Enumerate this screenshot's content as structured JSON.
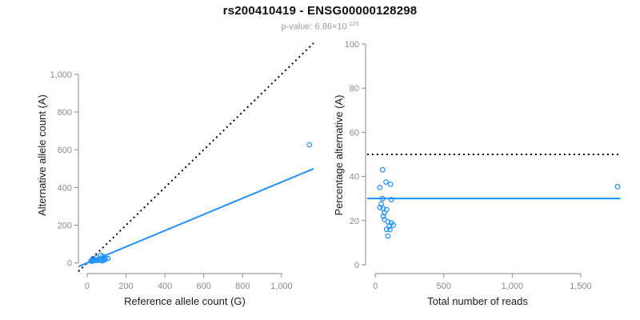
{
  "header": {
    "title": "rs200410419 - ENSG00000128298",
    "pvalue_label": "p-value: ",
    "pvalue_base": "6.86×10",
    "pvalue_exponent": "-125"
  },
  "colors": {
    "accent_blue": "#1E90FF",
    "line_black": "#000000",
    "axis_gray": "#8a8a8a",
    "tick_label_gray": "#8a8a8a",
    "axis_title_color": "#1a1a1a",
    "subtitle_gray": "#9a9a9a",
    "background": "#ffffff"
  },
  "chart_data": [
    {
      "id": "allele-count-scatter",
      "type": "scatter",
      "title": "",
      "xlabel": "Reference allele count (G)",
      "ylabel": "Alternative allele count (A)",
      "xlim": [
        0,
        1150
      ],
      "ylim": [
        0,
        1150
      ],
      "grid": false,
      "legend": "none",
      "xticks": [
        0,
        200,
        400,
        600,
        800,
        1000
      ],
      "xtick_labels": [
        "0",
        "200",
        "400",
        "600",
        "800",
        "1,000"
      ],
      "yticks": [
        0,
        200,
        400,
        600,
        800,
        1000
      ],
      "ytick_labels": [
        "0",
        "200",
        "400",
        "600",
        "800",
        "1,000"
      ],
      "points": [
        [
          30,
          23
        ],
        [
          49,
          29
        ],
        [
          70,
          41
        ],
        [
          21,
          12
        ],
        [
          36,
          16
        ],
        [
          82,
          35
        ],
        [
          31,
          12
        ],
        [
          24,
          9
        ],
        [
          42,
          15
        ],
        [
          62,
          21
        ],
        [
          50,
          16
        ],
        [
          45,
          13
        ],
        [
          52,
          14
        ],
        [
          74,
          18
        ],
        [
          95,
          22
        ],
        [
          84,
          18
        ],
        [
          107,
          24
        ],
        [
          69,
          13
        ],
        [
          90,
          17
        ],
        [
          80,
          12
        ],
        [
          1143,
          626
        ]
      ],
      "lines": [
        {
          "name": "identity-line",
          "kind": "abline",
          "slope": 1,
          "intercept": 0,
          "style": "dotted",
          "color": "#000000"
        },
        {
          "name": "fit-line",
          "kind": "abline",
          "slope": 0.4286,
          "intercept": 0,
          "style": "solid",
          "color": "#1E90FF"
        }
      ]
    },
    {
      "id": "percentage-alternative-scatter",
      "type": "scatter",
      "title": "",
      "xlabel": "Total number of reads",
      "ylabel": "Percentage alternative (A)",
      "xlim": [
        0,
        1780
      ],
      "ylim": [
        0,
        100
      ],
      "grid": false,
      "legend": "none",
      "xticks": [
        0,
        500,
        1000,
        1500
      ],
      "xtick_labels": [
        "0",
        "500",
        "1,000",
        "1,500"
      ],
      "yticks": [
        0,
        20,
        40,
        60,
        80,
        100
      ],
      "ytick_labels": [
        "0",
        "20",
        "40",
        "60",
        "80",
        "100"
      ],
      "points": [
        [
          53,
          43
        ],
        [
          78,
          37.5
        ],
        [
          111,
          36.5
        ],
        [
          33,
          35
        ],
        [
          52,
          30
        ],
        [
          117,
          29.5
        ],
        [
          43,
          27.5
        ],
        [
          33,
          26
        ],
        [
          57,
          25.5
        ],
        [
          82,
          25
        ],
        [
          66,
          23.5
        ],
        [
          58,
          22
        ],
        [
          66,
          20.5
        ],
        [
          92,
          19.5
        ],
        [
          117,
          19
        ],
        [
          102,
          17.5
        ],
        [
          131,
          18
        ],
        [
          82,
          16
        ],
        [
          107,
          16
        ],
        [
          92,
          13
        ],
        [
          1769,
          35.4
        ]
      ],
      "lines": [
        {
          "name": "expected-50pct-line",
          "kind": "hline",
          "y": 50,
          "span": [
            -60,
            1790
          ],
          "style": "dotted",
          "color": "#000000"
        },
        {
          "name": "mean-pct-line",
          "kind": "hline",
          "y": 30,
          "span": [
            -60,
            1790
          ],
          "style": "solid",
          "color": "#1E90FF"
        }
      ]
    }
  ]
}
